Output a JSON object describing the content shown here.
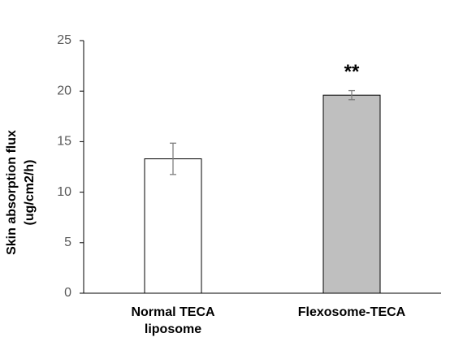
{
  "chart_data": {
    "type": "bar",
    "y_label": "Skin absorption flux (ug/cm2/h)",
    "categories": [
      "Normal TECA liposome",
      "Flexosome-TECA"
    ],
    "values": [
      13.3,
      19.6
    ],
    "errors": [
      1.55,
      0.45
    ],
    "colors": [
      "#ffffff",
      "#bfbfbf"
    ],
    "annotation": "**",
    "ylim": [
      0,
      25
    ],
    "yticks": [
      0,
      5,
      10,
      15,
      20,
      25
    ],
    "grid": false
  }
}
